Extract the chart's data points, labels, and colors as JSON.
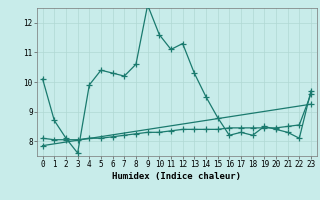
{
  "xlabel": "Humidex (Indice chaleur)",
  "background_color": "#c8ecea",
  "grid_color": "#b0d8d4",
  "line_color": "#1a7a6e",
  "xlim": [
    -0.5,
    23.5
  ],
  "ylim": [
    7.5,
    12.5
  ],
  "yticks": [
    8,
    9,
    10,
    11,
    12
  ],
  "xticks": [
    0,
    1,
    2,
    3,
    4,
    5,
    6,
    7,
    8,
    9,
    10,
    11,
    12,
    13,
    14,
    15,
    16,
    17,
    18,
    19,
    20,
    21,
    22,
    23
  ],
  "series1_x": [
    0,
    1,
    2,
    3,
    4,
    5,
    6,
    7,
    8,
    9,
    10,
    11,
    12,
    13,
    14,
    15,
    16,
    17,
    18,
    19,
    20,
    21,
    22,
    23
  ],
  "series1_y": [
    10.1,
    8.7,
    8.1,
    7.6,
    9.9,
    10.4,
    10.3,
    10.2,
    10.6,
    12.6,
    11.6,
    11.1,
    11.3,
    10.3,
    9.5,
    8.8,
    8.2,
    8.3,
    8.2,
    8.5,
    8.4,
    8.3,
    8.1,
    9.7
  ],
  "series2_x": [
    0,
    1,
    2,
    3,
    4,
    5,
    6,
    7,
    8,
    9,
    10,
    11,
    12,
    13,
    14,
    15,
    16,
    17,
    18,
    19,
    20,
    21,
    22,
    23
  ],
  "series2_y": [
    8.1,
    8.05,
    8.05,
    8.05,
    8.1,
    8.1,
    8.15,
    8.2,
    8.25,
    8.3,
    8.3,
    8.35,
    8.4,
    8.4,
    8.4,
    8.4,
    8.45,
    8.45,
    8.45,
    8.45,
    8.45,
    8.5,
    8.55,
    9.6
  ],
  "series3_x": [
    0,
    23
  ],
  "series3_y": [
    7.85,
    9.25
  ],
  "line_width": 0.9,
  "tick_fontsize": 5.5,
  "label_fontsize": 6.5
}
